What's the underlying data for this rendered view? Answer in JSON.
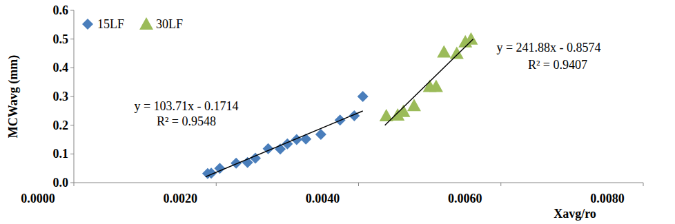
{
  "chart_data": {
    "type": "scatter",
    "x_label": "Xavg/ro",
    "y_label": "MCWavg (mm)",
    "xlim": [
      0,
      0.008
    ],
    "ylim": [
      0,
      0.6
    ],
    "xticks": [
      {
        "value": 0,
        "label": "0.0000"
      },
      {
        "value": 0.002,
        "label": "0.0020"
      },
      {
        "value": 0.004,
        "label": "0.0040"
      },
      {
        "value": 0.006,
        "label": "0.0060"
      },
      {
        "value": 0.008,
        "label": "0.0080"
      }
    ],
    "yticks": [
      {
        "value": 0,
        "label": "0.0"
      },
      0.1,
      0.2,
      0.3,
      0.4,
      0.5,
      0.6
    ],
    "grid": false,
    "legend": "top-left",
    "series": [
      {
        "name": "15LF",
        "color": "#4a7ebb",
        "marker": "diamond",
        "x": [
          0.00188,
          0.00193,
          0.00205,
          0.00228,
          0.00244,
          0.00255,
          0.00273,
          0.0029,
          0.003,
          0.00313,
          0.00326,
          0.00347,
          0.00374,
          0.00394,
          0.00406
        ],
        "values": [
          0.032,
          0.033,
          0.05,
          0.068,
          0.07,
          0.085,
          0.118,
          0.117,
          0.135,
          0.15,
          0.152,
          0.168,
          0.218,
          0.233,
          0.3
        ]
      },
      {
        "name": "30LF",
        "color": "#9bbb59",
        "marker": "triangle",
        "x": [
          0.00439,
          0.00455,
          0.00463,
          0.00478,
          0.005,
          0.00509,
          0.0052,
          0.00538,
          0.0055,
          0.00558
        ],
        "values": [
          0.233,
          0.235,
          0.248,
          0.268,
          0.335,
          0.335,
          0.455,
          0.45,
          0.49,
          0.5
        ]
      }
    ],
    "trendlines": [
      {
        "color": "#000000",
        "x": [
          0.00185,
          0.00406
        ],
        "values": [
          0.0205,
          0.2497
        ]
      },
      {
        "color": "#000000",
        "x": [
          0.00437,
          0.00561
        ],
        "values": [
          0.1996,
          0.4996
        ]
      }
    ],
    "annotations": [
      {
        "text": "y = 103.71x - 0.1714"
      },
      {
        "text": "R² = 0.9548"
      },
      {
        "text": "y = 241.88x - 0.8574"
      },
      {
        "text": "R² = 0.9407"
      }
    ]
  }
}
